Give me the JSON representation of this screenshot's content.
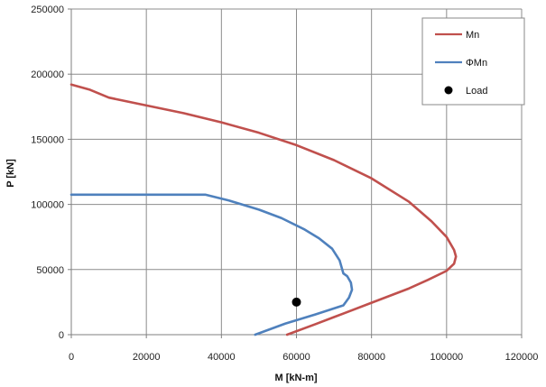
{
  "chart_data": {
    "type": "line",
    "xlabel": "M [kN-m]",
    "ylabel": "P [kN]",
    "xlim": [
      0,
      120000
    ],
    "ylim": [
      0,
      250000
    ],
    "x_ticks": [
      0,
      20000,
      40000,
      60000,
      80000,
      100000,
      120000
    ],
    "y_ticks": [
      0,
      50000,
      100000,
      150000,
      200000,
      250000
    ],
    "x_tick_labels": [
      "0",
      "20000",
      "40000",
      "60000",
      "80000",
      "100000",
      "120000"
    ],
    "y_tick_labels": [
      "0",
      "50000",
      "100000",
      "150000",
      "200000",
      "250000"
    ],
    "grid": true,
    "legend_position": "top-right",
    "series": [
      {
        "name": "Mn",
        "kind": "line",
        "color": "#c0504d",
        "points": [
          [
            0,
            192000
          ],
          [
            5000,
            188000
          ],
          [
            10000,
            182000
          ],
          [
            20000,
            176000
          ],
          [
            30000,
            170000
          ],
          [
            40000,
            163000
          ],
          [
            50000,
            155000
          ],
          [
            60000,
            145500
          ],
          [
            70000,
            134000
          ],
          [
            80000,
            120000
          ],
          [
            90000,
            102000
          ],
          [
            96000,
            87000
          ],
          [
            100000,
            75000
          ],
          [
            102000,
            65000
          ],
          [
            102500,
            60000
          ],
          [
            102000,
            54500
          ],
          [
            100000,
            49000
          ],
          [
            95000,
            42000
          ],
          [
            90000,
            35500
          ],
          [
            80000,
            24500
          ],
          [
            70000,
            13500
          ],
          [
            65000,
            8000
          ],
          [
            57500,
            0
          ]
        ]
      },
      {
        "name": "ΦMn",
        "kind": "line",
        "color": "#4f81bd",
        "points": [
          [
            0,
            107500
          ],
          [
            20000,
            107500
          ],
          [
            35700,
            107500
          ],
          [
            42000,
            103000
          ],
          [
            50000,
            96000
          ],
          [
            56000,
            89500
          ],
          [
            62000,
            81000
          ],
          [
            66000,
            74000
          ],
          [
            69500,
            66000
          ],
          [
            71500,
            57000
          ],
          [
            72500,
            47000
          ],
          [
            73500,
            45000
          ],
          [
            74500,
            40000
          ],
          [
            74800,
            34500
          ],
          [
            74000,
            28500
          ],
          [
            72500,
            22500
          ],
          [
            65000,
            15500
          ],
          [
            57000,
            8500
          ],
          [
            49000,
            0
          ]
        ]
      },
      {
        "name": "Load",
        "kind": "marker",
        "color": "#000000",
        "points": [
          [
            60000,
            25000
          ]
        ]
      }
    ]
  }
}
